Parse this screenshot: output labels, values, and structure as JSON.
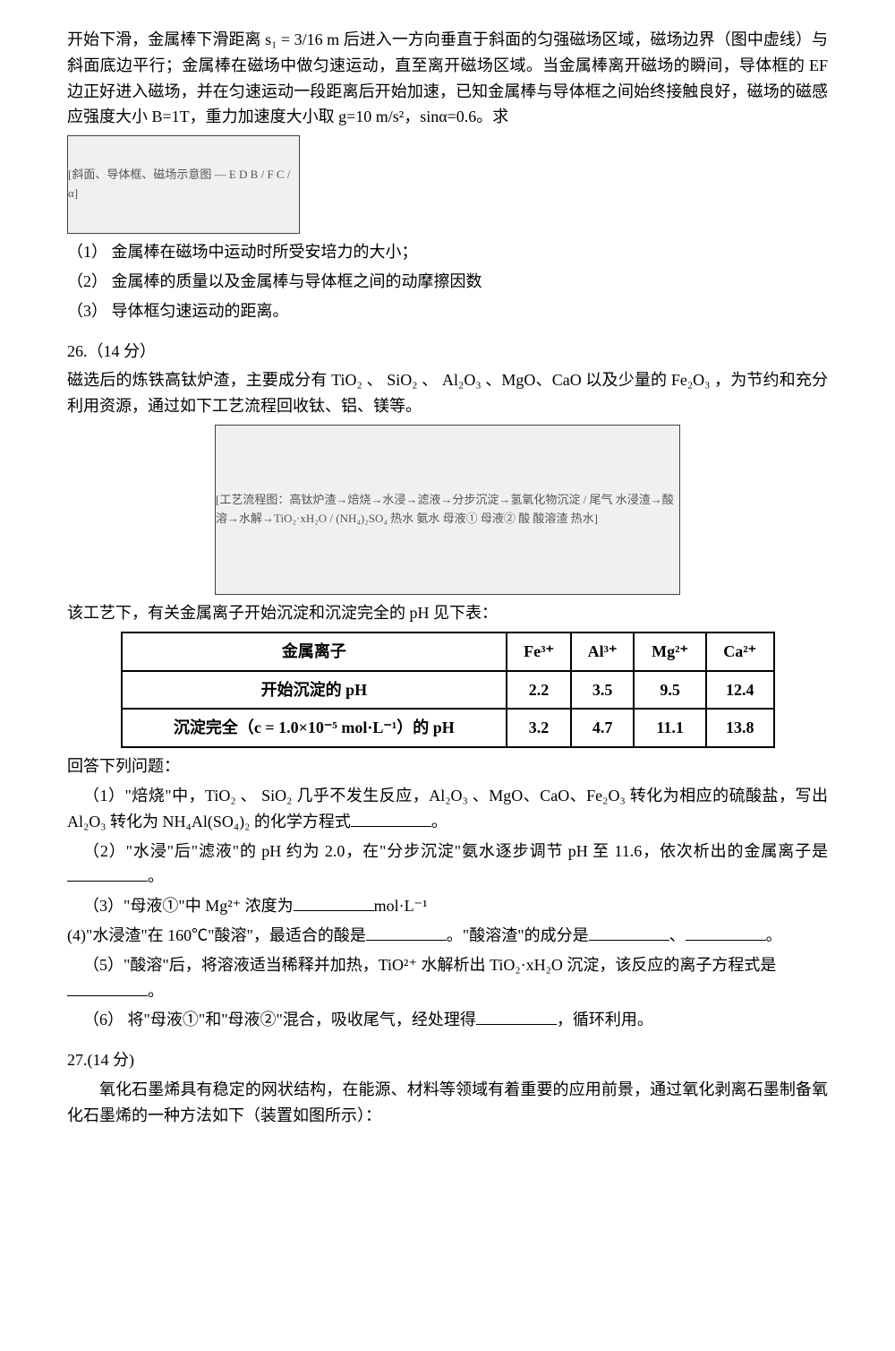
{
  "intro": {
    "p1": "开始下滑，金属棒下滑距离 s₁ = 3/16 m 后进入一方向垂直于斜面的匀强磁场区域，磁场边界（图中虚线）与斜面底边平行；金属棒在磁场中做匀速运动，直至离开磁场区域。当金属棒离开磁场的瞬间，导体框的 EF 边正好进入磁场，并在匀速运动一段距离后开始加速，已知金属棒与导体框之间始终接触良好，磁场的磁感应强度大小 B=1T，重力加速度大小取 g=10 m/s²，sinα=0.6。求",
    "fig1_label": "[斜面、导体框、磁场示意图 — E D B / F C / α]",
    "q1": "（1） 金属棒在磁场中运动时所受安培力的大小；",
    "q2": "（2） 金属棒的质量以及金属棒与导体框之间的动摩擦因数",
    "q3": "（3） 导体框匀速运动的距离。"
  },
  "q26": {
    "heading": "26.（14 分）",
    "p1": "磁选后的炼铁高钛炉渣，主要成分有 TiO₂ 、 SiO₂ 、 Al₂O₃ 、MgO、CaO 以及少量的 Fe₂O₃ ，为节约和充分利用资源，通过如下工艺流程回收钛、铝、镁等。",
    "fig2_label": "[工艺流程图：高钛炉渣→焙烧→水浸→滤液→分步沉淀→氢氧化物沉淀 / 尾气 水浸渣→酸溶→水解→TiO₂·xH₂O / (NH₄)₂SO₄ 热水 氨水 母液① 母液② 酸 酸溶渣 热水]",
    "table_intro": "该工艺下，有关金属离子开始沉淀和沉淀完全的 pH 见下表：",
    "table": {
      "headers": [
        "金属离子",
        "Fe³⁺",
        "Al³⁺",
        "Mg²⁺",
        "Ca²⁺"
      ],
      "rows": [
        [
          "开始沉淀的 pH",
          "2.2",
          "3.5",
          "9.5",
          "12.4"
        ],
        [
          "沉淀完全（c = 1.0×10⁻⁵ mol·L⁻¹）的 pH",
          "3.2",
          "4.7",
          "11.1",
          "13.8"
        ]
      ]
    },
    "answer_heading": "回答下列问题：",
    "a1a": "（1）\"焙烧\"中，TiO₂ 、 SiO₂ 几乎不发生反应，Al₂O₃ 、MgO、CaO、Fe₂O₃ 转化为相应的硫酸盐，写出 Al₂O₃ 转化为 NH₄Al(SO₄)₂ 的化学方程式",
    "a1b": "。",
    "a2a": "（2）\"水浸\"后\"滤液\"的 pH 约为 2.0，在\"分步沉淀\"氨水逐步调节 pH 至 11.6，依次析出的金属离子是",
    "a2b": "。",
    "a3a": "（3）\"母液①\"中 Mg²⁺ 浓度为",
    "a3b": "mol·L⁻¹",
    "a4a": "(4)\"水浸渣\"在 160℃\"酸溶\"，最适合的酸是",
    "a4b": "。\"酸溶渣\"的成分是",
    "a4c": "、",
    "a4d": "。",
    "a5a": "（5）\"酸溶\"后，将溶液适当稀释并加热，TiO²⁺ 水解析出 TiO₂·xH₂O 沉淀，该反应的离子方程式是",
    "a5b": "。",
    "a6a": "（6） 将\"母液①\"和\"母液②\"混合，吸收尾气，经处理得",
    "a6b": "，循环利用。"
  },
  "q27": {
    "heading": "27.(14 分)",
    "p1": "氧化石墨烯具有稳定的网状结构，在能源、材料等领域有着重要的应用前景，通过氧化剥离石墨制备氧化石墨烯的一种方法如下（装置如图所示）："
  }
}
